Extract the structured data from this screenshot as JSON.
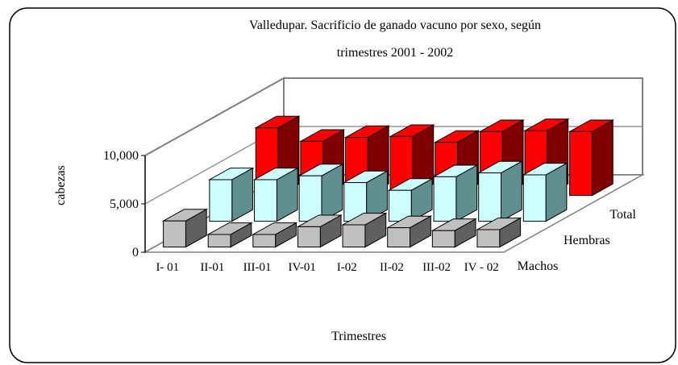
{
  "chart_data": {
    "type": "bar3d",
    "title": "Valledupar. Sacrificio de ganado vacuno por sexo, según trimestres 2001 - 2002",
    "x_label": "Trimestres",
    "y_label": "cabezas",
    "categories": [
      "I- 01",
      "II-01",
      "III-01",
      "IV-01",
      "I-02",
      "II-02",
      "III-02",
      "IV - 02"
    ],
    "series": [
      {
        "name": "Machos",
        "color": "#c0c0c0",
        "values": [
          2700,
          1300,
          1300,
          2100,
          2300,
          2000,
          1700,
          1800
        ]
      },
      {
        "name": "Hembras",
        "color": "#ccffff",
        "values": [
          4300,
          4300,
          4700,
          4000,
          3200,
          4600,
          5000,
          4800
        ]
      },
      {
        "name": "Total",
        "color": "#ff0000",
        "values": [
          7000,
          5600,
          6000,
          6100,
          5500,
          6600,
          6700,
          6600
        ]
      }
    ],
    "ylim": [
      0,
      10000
    ],
    "yticks": [
      0,
      {
        "value": 5000,
        "label": "5,000"
      },
      {
        "value": 10000,
        "label": "10,000"
      }
    ],
    "grid": true
  }
}
